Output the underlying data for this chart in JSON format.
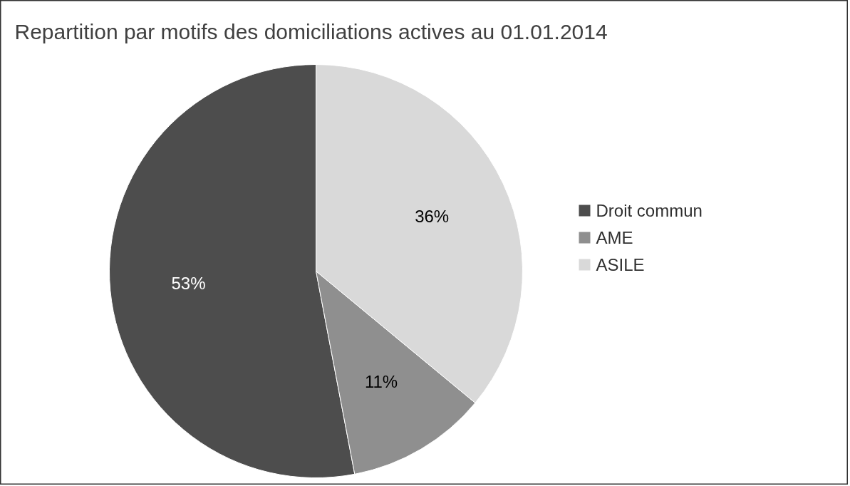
{
  "chart_data": {
    "type": "pie",
    "title": "Repartition par motifs des domiciliations actives au 01.01.2014",
    "categories": [
      "Droit commun",
      "AME",
      "ASILE"
    ],
    "values": [
      53,
      11,
      36
    ],
    "colors": [
      "#4d4d4d",
      "#8f8f8f",
      "#d9d9d9"
    ],
    "value_labels": [
      "53%",
      "11%",
      "36%"
    ],
    "legend": "right"
  }
}
